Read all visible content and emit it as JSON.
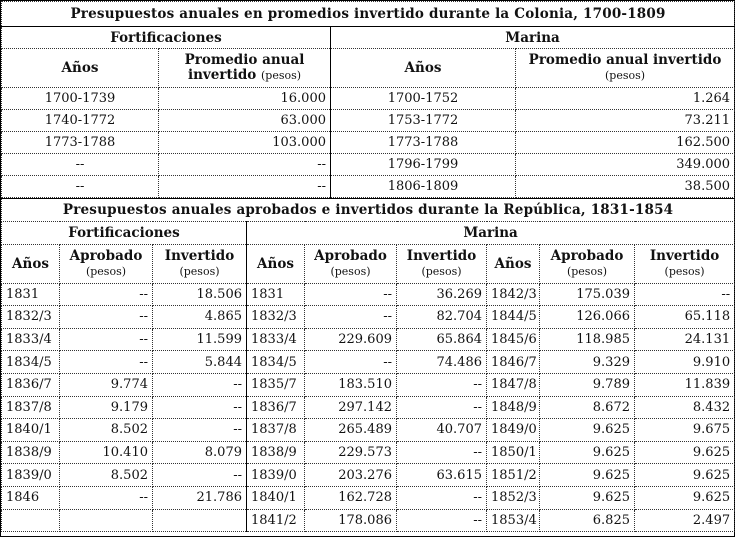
{
  "colonia": {
    "title": "Presupuestos anuales en promedios invertido durante la Colonia, 1700-1809",
    "fort_header": "Fortificaciones",
    "marina_header": "Marina",
    "col_anos": "Años",
    "col_promedio": "Promedio anual",
    "col_promedio_2": "invertido",
    "col_pesos": "(pesos)",
    "col_promedio_marina": "Promedio anual invertido",
    "rows": [
      {
        "f_year": "1700-1739",
        "f_val": "16.000",
        "m_year": "1700-1752",
        "m_val": "1.264"
      },
      {
        "f_year": "1740-1772",
        "f_val": "63.000",
        "m_year": "1753-1772",
        "m_val": "73.211"
      },
      {
        "f_year": "1773-1788",
        "f_val": "103.000",
        "m_year": "1773-1788",
        "m_val": "162.500"
      },
      {
        "f_year": "--",
        "f_val": "--",
        "m_year": "1796-1799",
        "m_val": "349.000"
      },
      {
        "f_year": "--",
        "f_val": "--",
        "m_year": "1806-1809",
        "m_val": "38.500"
      }
    ]
  },
  "republica": {
    "title": "Presupuestos anuales aprobados e invertidos durante la República, 1831-1854",
    "fort_header": "Fortificaciones",
    "marina_header": "Marina",
    "col_anos": "Años",
    "col_aprobado": "Aprobado",
    "col_invertido": "Invertido",
    "col_pesos": "(pesos)",
    "rows": [
      {
        "fy": "1831",
        "fa": "--",
        "fi": "18.506",
        "my": "1831",
        "ma": "--",
        "mi": "36.269",
        "my2": "1842/3",
        "ma2": "175.039",
        "mi2": "--"
      },
      {
        "fy": "1832/3",
        "fa": "--",
        "fi": "4.865",
        "my": "1832/3",
        "ma": "--",
        "mi": "82.704",
        "my2": "1844/5",
        "ma2": "126.066",
        "mi2": "65.118"
      },
      {
        "fy": "1833/4",
        "fa": "--",
        "fi": "11.599",
        "my": "1833/4",
        "ma": "229.609",
        "mi": "65.864",
        "my2": "1845/6",
        "ma2": "118.985",
        "mi2": "24.131"
      },
      {
        "fy": "1834/5",
        "fa": "--",
        "fi": "5.844",
        "my": "1834/5",
        "ma": "--",
        "mi": "74.486",
        "my2": "1846/7",
        "ma2": "9.329",
        "mi2": "9.910"
      },
      {
        "fy": "1836/7",
        "fa": "9.774",
        "fi": "--",
        "my": "1835/7",
        "ma": "183.510",
        "mi": "--",
        "my2": "1847/8",
        "ma2": "9.789",
        "mi2": "11.839"
      },
      {
        "fy": "1837/8",
        "fa": "9.179",
        "fi": "--",
        "my": "1836/7",
        "ma": "297.142",
        "mi": "--",
        "my2": "1848/9",
        "ma2": "8.672",
        "mi2": "8.432"
      },
      {
        "fy": "1840/1",
        "fa": "8.502",
        "fi": "--",
        "my": "1837/8",
        "ma": "265.489",
        "mi": "40.707",
        "my2": "1849/0",
        "ma2": "9.625",
        "mi2": "9.675"
      },
      {
        "fy": "1838/9",
        "fa": "10.410",
        "fi": "8.079",
        "my": "1838/9",
        "ma": "229.573",
        "mi": "--",
        "my2": "1850/1",
        "ma2": "9.625",
        "mi2": "9.625"
      },
      {
        "fy": "1839/0",
        "fa": "8.502",
        "fi": "--",
        "my": "1839/0",
        "ma": "203.276",
        "mi": "63.615",
        "my2": "1851/2",
        "ma2": "9.625",
        "mi2": "9.625"
      },
      {
        "fy": "1846",
        "fa": "--",
        "fi": "21.786",
        "my": "1840/1",
        "ma": "162.728",
        "mi": "--",
        "my2": "1852/3",
        "ma2": "9.625",
        "mi2": "9.625"
      },
      {
        "fy": "",
        "fa": "",
        "fi": "",
        "my": "1841/2",
        "ma": "178.086",
        "mi": "--",
        "my2": "1853/4",
        "ma2": "6.825",
        "mi2": "2.497"
      }
    ]
  }
}
